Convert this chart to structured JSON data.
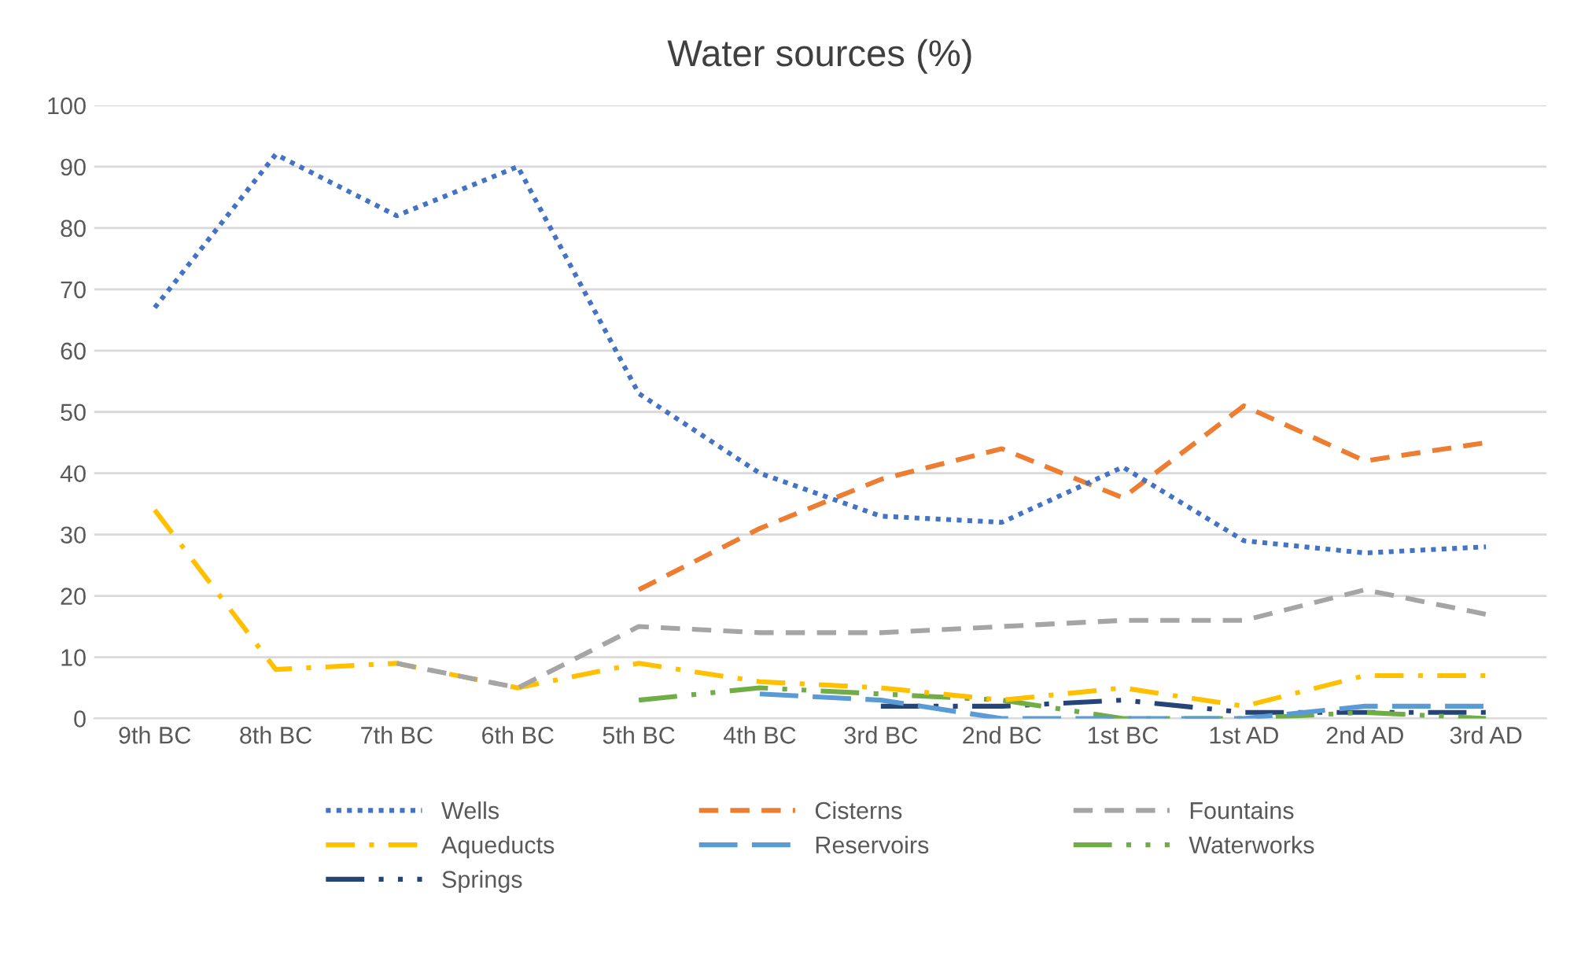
{
  "chart_data": {
    "type": "line",
    "title": "Water sources (%)",
    "categories": [
      "9th BC",
      "8th BC",
      "7th BC",
      "6th BC",
      "5th BC",
      "4th BC",
      "3rd BC",
      "2nd BC",
      "1st BC",
      "1st AD",
      "2nd AD",
      "3rd AD"
    ],
    "series": [
      {
        "name": "Wells",
        "color": "#4472c4",
        "line_style": "dotted",
        "values": [
          67,
          92,
          82,
          90,
          53,
          40,
          33,
          32,
          41,
          29,
          27,
          28
        ]
      },
      {
        "name": "Cisterns",
        "color": "#ed7d31",
        "line_style": "dashed",
        "values": [
          null,
          null,
          null,
          null,
          21,
          31,
          39,
          44,
          36,
          51,
          42,
          45
        ]
      },
      {
        "name": "Fountains",
        "color": "#a5a5a5",
        "line_style": "dashed",
        "values": [
          null,
          null,
          9,
          5,
          15,
          14,
          14,
          15,
          16,
          16,
          21,
          17
        ]
      },
      {
        "name": "Aqueducts",
        "color": "#ffc000",
        "line_style": "dashdot",
        "values": [
          34,
          8,
          9,
          5,
          9,
          6,
          5,
          3,
          5,
          2,
          7,
          7
        ]
      },
      {
        "name": "Reservoirs",
        "color": "#5b9bd5",
        "line_style": "longdash",
        "values": [
          null,
          null,
          null,
          null,
          null,
          4,
          3,
          0,
          0,
          0,
          2,
          2
        ]
      },
      {
        "name": "Waterworks",
        "color": "#70ad47",
        "line_style": "longdashdotdot",
        "values": [
          null,
          null,
          null,
          null,
          3,
          5,
          4,
          3,
          0,
          0,
          1,
          0
        ]
      },
      {
        "name": "Springs",
        "color": "#264478",
        "line_style": "longdashdotdot",
        "values": [
          null,
          null,
          null,
          null,
          null,
          null,
          2,
          2,
          3,
          1,
          1,
          1
        ]
      }
    ],
    "ylim": [
      0,
      100
    ],
    "yticks": [
      0,
      10,
      20,
      30,
      40,
      50,
      60,
      70,
      80,
      90,
      100
    ],
    "grid": "y",
    "legend": "bottom",
    "marker": "none"
  }
}
